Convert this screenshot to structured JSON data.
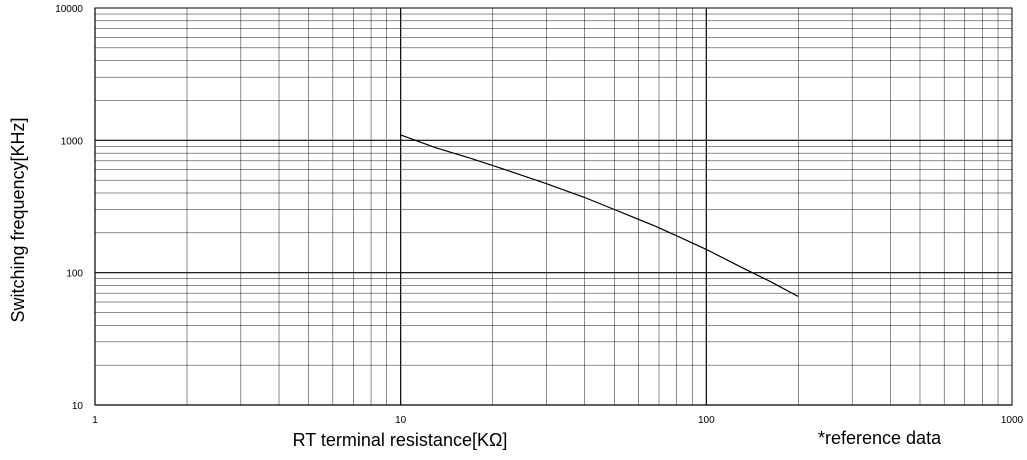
{
  "chart_data": {
    "type": "line",
    "title": "",
    "xlabel": "RT terminal resistance[KΩ]",
    "ylabel": "Switching frequency[KHz]",
    "x_scale": "log",
    "y_scale": "log",
    "xlim": [
      1,
      1000
    ],
    "ylim": [
      10,
      10000
    ],
    "x_tick_labels": [
      "1",
      "10",
      "100",
      "1000"
    ],
    "y_tick_labels": [
      "10",
      "100",
      "1000",
      "10000"
    ],
    "grid": true,
    "annotation": "*reference data",
    "series": [
      {
        "x": [
          10,
          13,
          17,
          22,
          30,
          40,
          50,
          68,
          82,
          100,
          130,
          160,
          200
        ],
        "y": [
          1100,
          880,
          730,
          600,
          470,
          370,
          300,
          225,
          185,
          150,
          110,
          87,
          66
        ]
      }
    ],
    "colors": {
      "grid": "#000000",
      "line": "#000000",
      "background": "#ffffff"
    }
  }
}
